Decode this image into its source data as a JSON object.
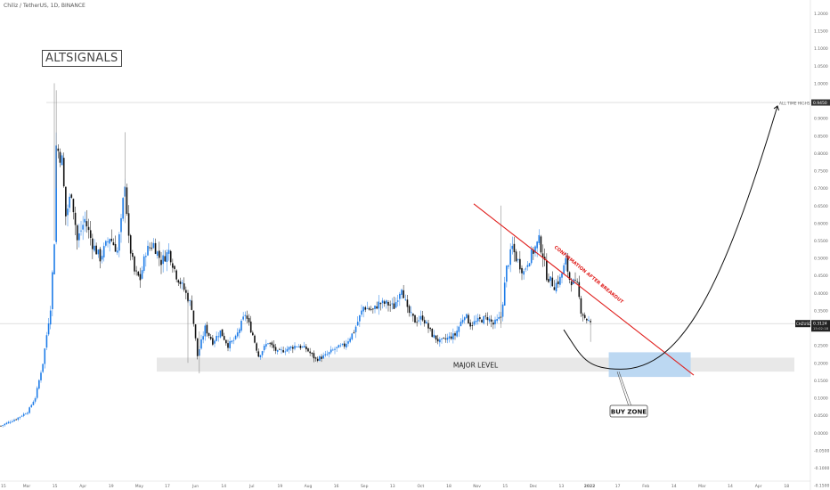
{
  "symbol_title": "Chiliz / TetherUS, 1D, BINANCE",
  "watermark": "ALTSIGNALS",
  "colors": {
    "bull": "#1e7ce8",
    "bear": "#111111",
    "trendline": "#e0201e",
    "zone": "#e8e8e8",
    "buy_zone": "#bcd8f2",
    "curve": "#111111"
  },
  "chart_data": {
    "type": "candlestick",
    "title": "Chiliz / TetherUS, 1D, BINANCE",
    "x_ticks": [
      "Mar",
      "15",
      "Apr",
      "19",
      "May",
      "17",
      "Jun",
      "14",
      "Jul",
      "19",
      "Aug",
      "16",
      "Sep",
      "13",
      "Oct",
      "18",
      "Nov",
      "15",
      "Dec",
      "13",
      "2022",
      "17",
      "Feb",
      "14",
      "Mar",
      "14",
      "Apr",
      "18"
    ],
    "x_tick_first": "15",
    "y_ticks": [
      "1.2000",
      "1.1000",
      "1.0000",
      "0.9000",
      "0.8000",
      "0.7000",
      "0.6000",
      "0.5000",
      "0.4000",
      "0.3000",
      "0.2000",
      "0.1000",
      "0.0000",
      "-0.1000"
    ],
    "y_tick_labels_secondary": [
      "1.1500",
      "1.0500",
      "0.8500",
      "0.7500",
      "0.6500",
      "0.5500",
      "0.4500",
      "0.3500",
      "0.2500",
      "0.1500",
      "0.0500",
      "-0.0500",
      "-0.1500"
    ],
    "ylim": [
      -0.19,
      1.28
    ],
    "price_label": "CHZUSDT",
    "current_price": "0.3124",
    "current_price_sub": "15:02:18",
    "ath_price": "0.9450",
    "ath_label": "ALL TIME HIGHS",
    "annotations": {
      "major_level": "MAJOR LEVEL",
      "buy_zone": "BUY ZONE",
      "trendline": "CONFIRMATION AFTER BREAKOUT"
    },
    "major_level_range": [
      0.175,
      0.215
    ],
    "anchors_day_close": [
      [
        0,
        0.02
      ],
      [
        8,
        0.04
      ],
      [
        14,
        0.06
      ],
      [
        18,
        0.1
      ],
      [
        22,
        0.2
      ],
      [
        24,
        0.28
      ],
      [
        26,
        0.36
      ],
      [
        28,
        0.55
      ],
      [
        29,
        0.82
      ],
      [
        32,
        0.78
      ],
      [
        34,
        0.62
      ],
      [
        37,
        0.69
      ],
      [
        40,
        0.55
      ],
      [
        44,
        0.61
      ],
      [
        48,
        0.54
      ],
      [
        52,
        0.5
      ],
      [
        57,
        0.56
      ],
      [
        61,
        0.52
      ],
      [
        63,
        0.6
      ],
      [
        65,
        0.72
      ],
      [
        67,
        0.55
      ],
      [
        70,
        0.46
      ],
      [
        73,
        0.44
      ],
      [
        76,
        0.52
      ],
      [
        80,
        0.54
      ],
      [
        84,
        0.49
      ],
      [
        88,
        0.52
      ],
      [
        92,
        0.45
      ],
      [
        96,
        0.41
      ],
      [
        100,
        0.36
      ],
      [
        103,
        0.22
      ],
      [
        107,
        0.3
      ],
      [
        111,
        0.26
      ],
      [
        115,
        0.29
      ],
      [
        119,
        0.25
      ],
      [
        123,
        0.27
      ],
      [
        128,
        0.34
      ],
      [
        132,
        0.28
      ],
      [
        135,
        0.22
      ],
      [
        140,
        0.26
      ],
      [
        145,
        0.23
      ],
      [
        150,
        0.24
      ],
      [
        155,
        0.25
      ],
      [
        160,
        0.24
      ],
      [
        165,
        0.21
      ],
      [
        170,
        0.22
      ],
      [
        175,
        0.24
      ],
      [
        180,
        0.25
      ],
      [
        185,
        0.29
      ],
      [
        190,
        0.36
      ],
      [
        195,
        0.35
      ],
      [
        198,
        0.37
      ],
      [
        202,
        0.37
      ],
      [
        206,
        0.36
      ],
      [
        210,
        0.42
      ],
      [
        213,
        0.35
      ],
      [
        217,
        0.32
      ],
      [
        221,
        0.33
      ],
      [
        226,
        0.28
      ],
      [
        230,
        0.26
      ],
      [
        234,
        0.27
      ],
      [
        238,
        0.28
      ],
      [
        243,
        0.34
      ],
      [
        246,
        0.31
      ],
      [
        250,
        0.32
      ],
      [
        255,
        0.33
      ],
      [
        258,
        0.31
      ],
      [
        262,
        0.33
      ],
      [
        265,
        0.47
      ],
      [
        268,
        0.53
      ],
      [
        270,
        0.5
      ],
      [
        274,
        0.46
      ],
      [
        276,
        0.49
      ],
      [
        279,
        0.52
      ],
      [
        282,
        0.55
      ],
      [
        284,
        0.51
      ],
      [
        286,
        0.45
      ],
      [
        290,
        0.42
      ],
      [
        293,
        0.44
      ],
      [
        296,
        0.49
      ],
      [
        298,
        0.44
      ],
      [
        300,
        0.43
      ],
      [
        302,
        0.42
      ],
      [
        304,
        0.35
      ],
      [
        306,
        0.33
      ],
      [
        308,
        0.32
      ],
      [
        309,
        0.31
      ]
    ],
    "ath_curve_day": [
      310,
      420
    ],
    "buy_zone_day": [
      312,
      356
    ],
    "trendline_points": [
      [
        259,
        0.655
      ],
      [
        376,
        0.165
      ]
    ]
  }
}
